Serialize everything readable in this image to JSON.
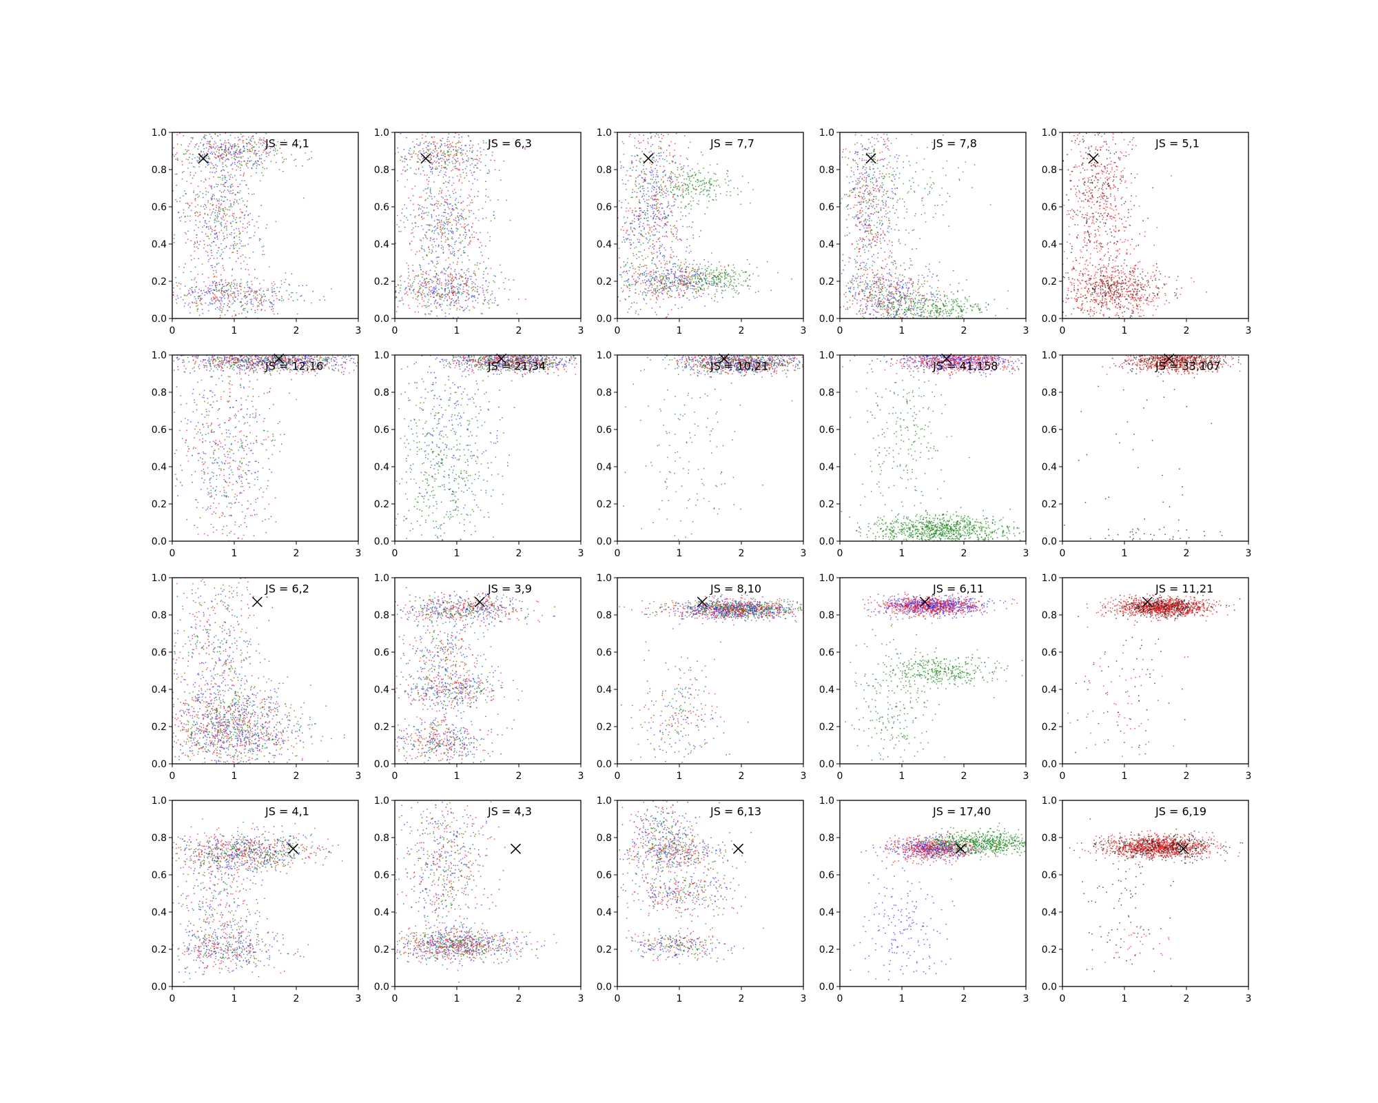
{
  "chart_data": {
    "type": "scatter",
    "grid": false,
    "xlim": [
      0,
      3
    ],
    "ylim": [
      0,
      1
    ],
    "xticks": [
      "0",
      "1",
      "2",
      "3"
    ],
    "yticks": [
      "0.0",
      "0.2",
      "0.4",
      "0.6",
      "0.8",
      "1.0"
    ],
    "colors": {
      "blue": "#3a3aff",
      "green": "#1a8a1a",
      "red": "#ff1a1a",
      "black": "#222222"
    },
    "rows": [
      {
        "marker": [
          0.5,
          0.86
        ],
        "panels": [
          {
            "label": "JS = 4,1",
            "clusters": [
              {
                "color": "mix",
                "cx": 1.0,
                "cy": 0.9,
                "sx": 0.45,
                "sy": 0.05,
                "n": 450
              },
              {
                "color": "mix",
                "cx": 0.75,
                "cy": 0.55,
                "sx": 0.35,
                "sy": 0.2,
                "n": 650
              },
              {
                "color": "mix",
                "cx": 1.0,
                "cy": 0.12,
                "sx": 0.55,
                "sy": 0.05,
                "n": 450
              }
            ]
          },
          {
            "label": "JS = 6,3",
            "clusters": [
              {
                "color": "mix",
                "cx": 0.8,
                "cy": 0.88,
                "sx": 0.4,
                "sy": 0.06,
                "n": 400
              },
              {
                "color": "mix",
                "cx": 0.8,
                "cy": 0.5,
                "sx": 0.35,
                "sy": 0.15,
                "n": 550
              },
              {
                "color": "mix",
                "cx": 0.8,
                "cy": 0.15,
                "sx": 0.45,
                "sy": 0.06,
                "n": 550
              }
            ]
          },
          {
            "label": "JS = 7,7",
            "clusters": [
              {
                "color": "mix",
                "cx": 0.6,
                "cy": 0.6,
                "sx": 0.3,
                "sy": 0.28,
                "n": 900
              },
              {
                "color": "green",
                "cx": 1.3,
                "cy": 0.72,
                "sx": 0.35,
                "sy": 0.05,
                "n": 200
              },
              {
                "color": "mix",
                "cx": 0.9,
                "cy": 0.2,
                "sx": 0.45,
                "sy": 0.05,
                "n": 500
              },
              {
                "color": "green",
                "cx": 1.6,
                "cy": 0.22,
                "sx": 0.35,
                "sy": 0.04,
                "n": 200
              }
            ]
          },
          {
            "label": "JS = 7,8",
            "clusters": [
              {
                "color": "mix",
                "cx": 0.5,
                "cy": 0.65,
                "sx": 0.25,
                "sy": 0.22,
                "n": 700
              },
              {
                "color": "mix",
                "cx": 0.8,
                "cy": 0.12,
                "sx": 0.4,
                "sy": 0.08,
                "n": 700
              },
              {
                "color": "green",
                "cx": 1.6,
                "cy": 0.05,
                "sx": 0.4,
                "sy": 0.04,
                "n": 300
              },
              {
                "color": "green",
                "cx": 1.3,
                "cy": 0.7,
                "sx": 0.4,
                "sy": 0.15,
                "n": 80
              }
            ]
          },
          {
            "label": "JS = 5,1",
            "clusters": [
              {
                "color": "redblack",
                "cx": 0.6,
                "cy": 0.65,
                "sx": 0.3,
                "sy": 0.25,
                "n": 700
              },
              {
                "color": "redblack",
                "cx": 0.8,
                "cy": 0.15,
                "sx": 0.45,
                "sy": 0.07,
                "n": 750
              }
            ]
          }
        ]
      },
      {
        "marker": [
          1.72,
          0.98
        ],
        "panels": [
          {
            "label": "JS = 12,16",
            "clusters": [
              {
                "color": "mix",
                "cx": 1.6,
                "cy": 0.97,
                "sx": 0.7,
                "sy": 0.03,
                "n": 1200
              },
              {
                "color": "mix",
                "cx": 0.9,
                "cy": 0.5,
                "sx": 0.4,
                "sy": 0.3,
                "n": 650
              }
            ]
          },
          {
            "label": "JS = 21,34",
            "clusters": [
              {
                "color": "mix",
                "cx": 1.9,
                "cy": 0.97,
                "sx": 0.5,
                "sy": 0.03,
                "n": 1100
              },
              {
                "color": "green",
                "cx": 0.8,
                "cy": 0.4,
                "sx": 0.4,
                "sy": 0.25,
                "n": 450
              },
              {
                "color": "blue",
                "cx": 0.9,
                "cy": 0.6,
                "sx": 0.4,
                "sy": 0.3,
                "n": 200
              }
            ]
          },
          {
            "label": "JS = 10,21",
            "clusters": [
              {
                "color": "mix",
                "cx": 2.0,
                "cy": 0.96,
                "sx": 0.5,
                "sy": 0.03,
                "n": 1100
              },
              {
                "color": "green",
                "cx": 1.1,
                "cy": 0.5,
                "sx": 0.5,
                "sy": 0.3,
                "n": 150
              }
            ]
          },
          {
            "label": "JS = 41,158",
            "clusters": [
              {
                "color": "redblue",
                "cx": 1.9,
                "cy": 0.97,
                "sx": 0.45,
                "sy": 0.03,
                "n": 1000
              },
              {
                "color": "green",
                "cx": 1.6,
                "cy": 0.06,
                "sx": 0.55,
                "sy": 0.04,
                "n": 900
              },
              {
                "color": "green",
                "cx": 1.0,
                "cy": 0.55,
                "sx": 0.35,
                "sy": 0.28,
                "n": 250
              }
            ]
          },
          {
            "label": "JS = 33,107",
            "clusters": [
              {
                "color": "redblack",
                "cx": 1.85,
                "cy": 0.97,
                "sx": 0.4,
                "sy": 0.03,
                "n": 1000
              },
              {
                "color": "black",
                "cx": 1.2,
                "cy": 0.5,
                "sx": 0.5,
                "sy": 0.3,
                "n": 40
              },
              {
                "color": "black",
                "cx": 1.3,
                "cy": 0.03,
                "sx": 0.5,
                "sy": 0.02,
                "n": 40
              }
            ]
          }
        ]
      },
      {
        "marker": [
          1.37,
          0.87
        ],
        "panels": [
          {
            "label": "JS = 6,2",
            "clusters": [
              {
                "color": "mix",
                "cx": 1.0,
                "cy": 0.15,
                "sx": 0.6,
                "sy": 0.08,
                "n": 900
              },
              {
                "color": "mix",
                "cx": 0.9,
                "cy": 0.3,
                "sx": 0.5,
                "sy": 0.07,
                "n": 400
              },
              {
                "color": "mix",
                "cx": 0.7,
                "cy": 0.65,
                "sx": 0.35,
                "sy": 0.2,
                "n": 450
              }
            ]
          },
          {
            "label": "JS = 3,9",
            "clusters": [
              {
                "color": "mix",
                "cx": 1.1,
                "cy": 0.83,
                "sx": 0.5,
                "sy": 0.04,
                "n": 600
              },
              {
                "color": "mix",
                "cx": 0.9,
                "cy": 0.4,
                "sx": 0.4,
                "sy": 0.05,
                "n": 450
              },
              {
                "color": "mix",
                "cx": 0.8,
                "cy": 0.6,
                "sx": 0.35,
                "sy": 0.08,
                "n": 250
              },
              {
                "color": "mix",
                "cx": 0.8,
                "cy": 0.12,
                "sx": 0.4,
                "sy": 0.06,
                "n": 450
              }
            ]
          },
          {
            "label": "JS = 8,10",
            "clusters": [
              {
                "color": "mix",
                "cx": 1.9,
                "cy": 0.83,
                "sx": 0.5,
                "sy": 0.025,
                "n": 1300
              },
              {
                "color": "mix",
                "cx": 1.0,
                "cy": 0.25,
                "sx": 0.35,
                "sy": 0.15,
                "n": 250
              }
            ]
          },
          {
            "label": "JS = 6,11",
            "clusters": [
              {
                "color": "redblue",
                "cx": 1.5,
                "cy": 0.85,
                "sx": 0.4,
                "sy": 0.025,
                "n": 1200
              },
              {
                "color": "green",
                "cx": 1.7,
                "cy": 0.5,
                "sx": 0.45,
                "sy": 0.04,
                "n": 350
              },
              {
                "color": "green",
                "cx": 0.9,
                "cy": 0.35,
                "sx": 0.35,
                "sy": 0.22,
                "n": 250
              }
            ]
          },
          {
            "label": "JS = 11,21",
            "clusters": [
              {
                "color": "redblack",
                "cx": 1.6,
                "cy": 0.84,
                "sx": 0.4,
                "sy": 0.025,
                "n": 1300
              },
              {
                "color": "redblack",
                "cx": 1.0,
                "cy": 0.35,
                "sx": 0.4,
                "sy": 0.2,
                "n": 120
              }
            ]
          }
        ]
      },
      {
        "marker": [
          1.95,
          0.74
        ],
        "panels": [
          {
            "label": "JS = 4,1",
            "clusters": [
              {
                "color": "mix",
                "cx": 1.2,
                "cy": 0.72,
                "sx": 0.55,
                "sy": 0.05,
                "n": 900
              },
              {
                "color": "mix",
                "cx": 0.9,
                "cy": 0.2,
                "sx": 0.45,
                "sy": 0.06,
                "n": 450
              },
              {
                "color": "mix",
                "cx": 0.7,
                "cy": 0.45,
                "sx": 0.35,
                "sy": 0.15,
                "n": 300
              }
            ]
          },
          {
            "label": "JS = 4,3",
            "clusters": [
              {
                "color": "mix",
                "cx": 1.0,
                "cy": 0.22,
                "sx": 0.5,
                "sy": 0.04,
                "n": 900
              },
              {
                "color": "mix",
                "cx": 0.8,
                "cy": 0.65,
                "sx": 0.35,
                "sy": 0.2,
                "n": 600
              }
            ]
          },
          {
            "label": "JS = 6,13",
            "clusters": [
              {
                "color": "mix",
                "cx": 0.9,
                "cy": 0.72,
                "sx": 0.4,
                "sy": 0.05,
                "n": 450
              },
              {
                "color": "mix",
                "cx": 1.0,
                "cy": 0.5,
                "sx": 0.45,
                "sy": 0.06,
                "n": 350
              },
              {
                "color": "mix",
                "cx": 0.9,
                "cy": 0.22,
                "sx": 0.4,
                "sy": 0.04,
                "n": 300
              },
              {
                "color": "mix",
                "cx": 0.7,
                "cy": 0.85,
                "sx": 0.3,
                "sy": 0.08,
                "n": 250
              }
            ]
          },
          {
            "label": "JS = 17,40",
            "clusters": [
              {
                "color": "redblue",
                "cx": 1.5,
                "cy": 0.74,
                "sx": 0.35,
                "sy": 0.03,
                "n": 900
              },
              {
                "color": "green",
                "cx": 2.3,
                "cy": 0.77,
                "sx": 0.5,
                "sy": 0.03,
                "n": 700
              },
              {
                "color": "blue",
                "cx": 1.0,
                "cy": 0.3,
                "sx": 0.35,
                "sy": 0.15,
                "n": 180
              }
            ]
          },
          {
            "label": "JS = 6,19",
            "clusters": [
              {
                "color": "redblack",
                "cx": 1.55,
                "cy": 0.75,
                "sx": 0.45,
                "sy": 0.03,
                "n": 1400
              },
              {
                "color": "black",
                "cx": 1.0,
                "cy": 0.4,
                "sx": 0.4,
                "sy": 0.18,
                "n": 80
              },
              {
                "color": "red",
                "cx": 1.2,
                "cy": 0.22,
                "sx": 0.3,
                "sy": 0.05,
                "n": 30
              }
            ]
          }
        ]
      }
    ]
  }
}
